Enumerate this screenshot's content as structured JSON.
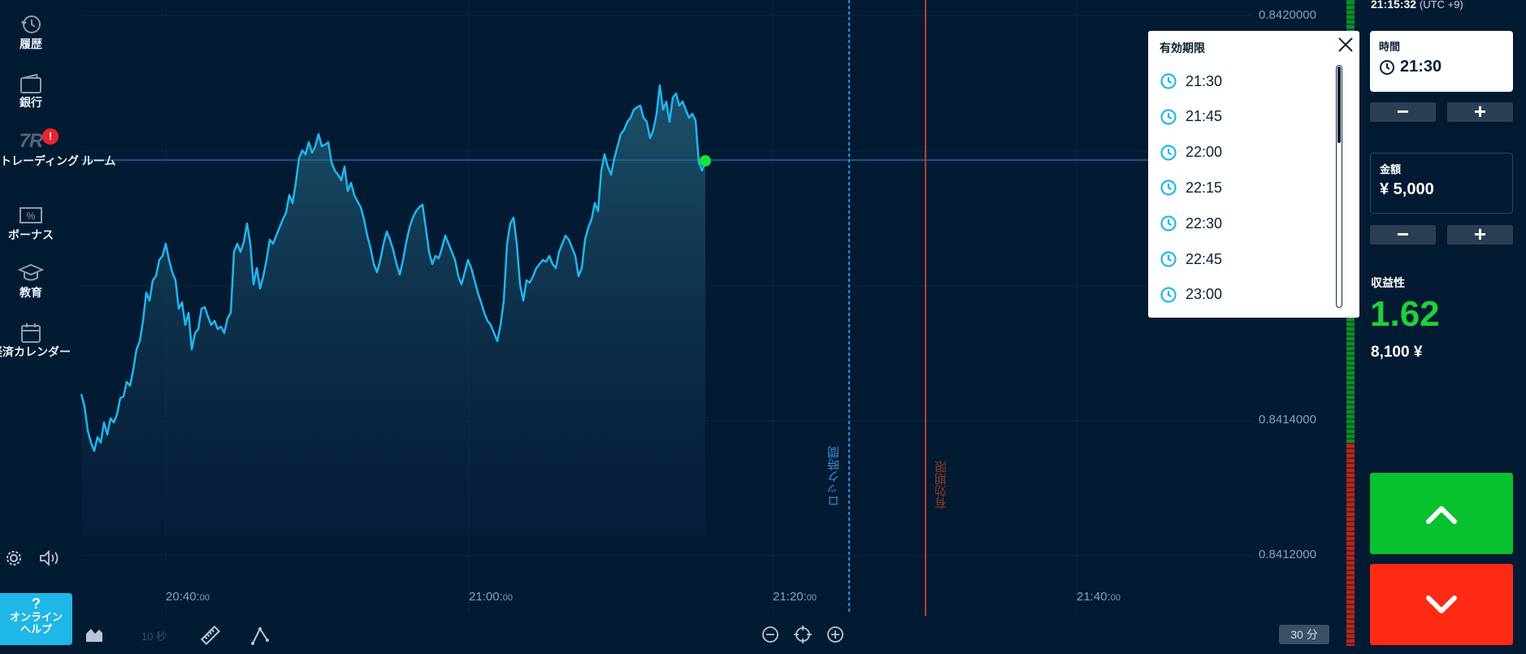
{
  "sidebar": {
    "items": [
      {
        "label": "履歴",
        "icon": "history-icon"
      },
      {
        "label": "銀行",
        "icon": "wallet-icon"
      },
      {
        "label": "トレーディング ルーム",
        "icon": "trading-room-icon",
        "badge": "!"
      },
      {
        "label": "ボーナス",
        "icon": "bonus-icon"
      },
      {
        "label": "教育",
        "icon": "education-icon"
      },
      {
        "label": "経済カレンダー",
        "icon": "calendar-icon"
      }
    ],
    "tr_logo": "7R",
    "help": {
      "mark": "?",
      "line1": "オンライン",
      "line2": "ヘルプ"
    }
  },
  "chart": {
    "y_ticks": [
      "0.8420000",
      "0.8414000",
      "0.8412000"
    ],
    "x_ticks": [
      {
        "main": "20:40:",
        "sec": "00"
      },
      {
        "main": "21:00:",
        "sec": "00"
      },
      {
        "main": "21:20:",
        "sec": "00"
      },
      {
        "main": "21:40:",
        "sec": "00"
      }
    ],
    "lock_label": "ロック時間",
    "expiry_label": "有効期限",
    "speed_label": "10 秒",
    "period_label": "30 分",
    "line_color": "#1fb6f0",
    "current_point_color": "#11e836"
  },
  "header": {
    "clock": "21:15:32",
    "timezone": "(UTC +9)"
  },
  "expiry_dropdown": {
    "title": "有効期限",
    "options": [
      "21:30",
      "21:45",
      "22:00",
      "22:15",
      "22:30",
      "22:45",
      "23:00"
    ]
  },
  "trade_panel": {
    "time_label": "時間",
    "time_value": "21:30",
    "amount_label": "金額",
    "amount_value": "¥ 5,000",
    "minus": "−",
    "plus": "+",
    "profit_label": "収益性",
    "profit_value": "1.62",
    "payout": "8,100 ¥",
    "up_color": "#08c12f",
    "down_color": "#fd2b14"
  }
}
